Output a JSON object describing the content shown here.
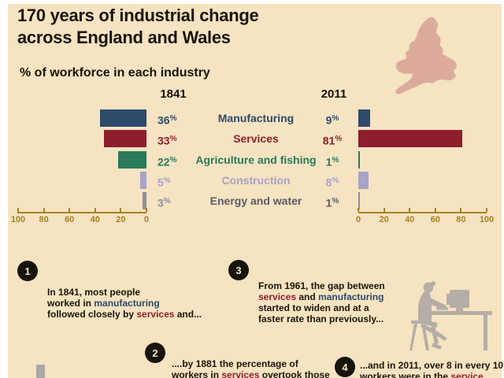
{
  "page": {
    "title_line1": "170 years of industrial change",
    "title_line2": "across England and Wales",
    "subtitle": "% of workforce in each industry"
  },
  "chart_data": {
    "type": "bar",
    "orientation": "horizontal",
    "title": "% of workforce in each industry",
    "categories": [
      "Manufacturing",
      "Services",
      "Agriculture and fishing",
      "Construction",
      "Energy and water"
    ],
    "series": [
      {
        "name": "1841",
        "values": [
          36,
          33,
          22,
          5,
          3
        ]
      },
      {
        "name": "2011",
        "values": [
          9,
          81,
          1,
          8,
          1
        ]
      }
    ],
    "value_suffix": "%",
    "left_axis_tick_labels": [
      "100",
      "80",
      "60",
      "40",
      "20",
      "0"
    ],
    "right_axis_tick_labels": [
      "0",
      "20",
      "40",
      "60",
      "80",
      "100"
    ],
    "left_axis_range": [
      100,
      0
    ],
    "right_axis_range": [
      0,
      100
    ],
    "grid": false,
    "legend_position": "none"
  },
  "row_styles": [
    {
      "bar": "#2e4a6b",
      "label": "#2e4a6b",
      "left_value": "#2e4a6b",
      "right_value": "#2e4a6b"
    },
    {
      "bar": "#8e1e2d",
      "label": "#8e1e2d",
      "left_value": "#8e1e2d",
      "right_value": "#8e1e2d"
    },
    {
      "bar": "#2a7a5a",
      "label": "#2a7a5a",
      "left_value": "#2a7a5a",
      "right_value": "#2a7a5a"
    },
    {
      "bar": "#a8a2c8",
      "label": "#a8a2c8",
      "left_value": "#a8a2c8",
      "right_value": "#a8a2c8"
    },
    {
      "bar": "#8f8f98",
      "label": "#5a5a64",
      "left_value": "#8f8f98",
      "right_value": "#5a5a64"
    }
  ],
  "notes": [
    {
      "number": "1",
      "segments": [
        {
          "text": "In 1841, most people\nworked in "
        },
        {
          "text": "manufacturing",
          "color": "#2e4a6b"
        },
        {
          "text": "\nfollowed closely by "
        },
        {
          "text": "services",
          "color": "#8e1e2d"
        },
        {
          "text": " and..."
        }
      ]
    },
    {
      "number": "2",
      "segments": [
        {
          "text": "....by 1881 the percentage of\nworkers in "
        },
        {
          "text": "services",
          "color": "#8e1e2d"
        },
        {
          "text": " overtook those"
        }
      ]
    },
    {
      "number": "3",
      "segments": [
        {
          "text": "From 1961, the gap between\n"
        },
        {
          "text": "services",
          "color": "#8e1e2d"
        },
        {
          "text": " and "
        },
        {
          "text": "manufacturing",
          "color": "#2e4a6b"
        },
        {
          "text": "\nstarted to widen and at a\nfaster rate than previously..."
        }
      ]
    },
    {
      "number": "4",
      "segments": [
        {
          "text": "...and in 2011, over 8 in every 10\nworkers were in the "
        },
        {
          "text": "service",
          "color": "#8e1e2d"
        },
        {
          "text": "..."
        }
      ]
    }
  ],
  "palette": {
    "background": "#f5e3c1",
    "page_border": "#ffffff",
    "axis": "#a97f23",
    "badge": "#17130d",
    "badge_text": "#f5e3c1",
    "map": "#dcab9b",
    "silhouette": "#b5aea6",
    "body_text": "#1c150a",
    "bottom_bar": "#a9a9a9"
  }
}
